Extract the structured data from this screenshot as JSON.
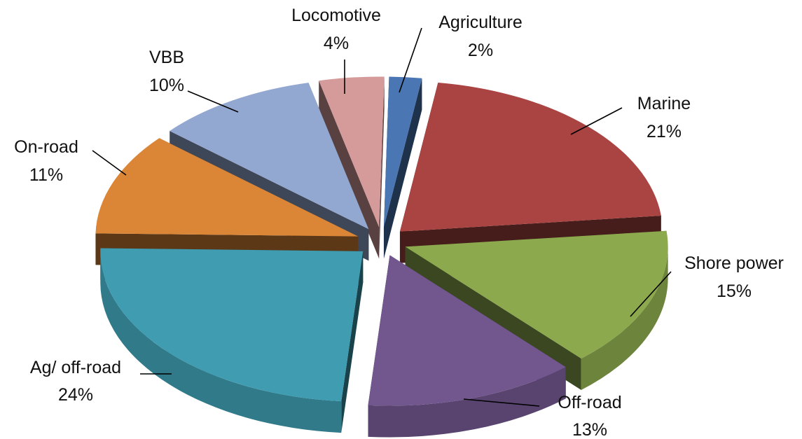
{
  "chart_data": {
    "type": "pie",
    "style": "3d-exploded",
    "title": "",
    "legend": "none",
    "unit": "%",
    "slices": [
      {
        "label": "Agriculture",
        "value": 2,
        "value_label": "2%",
        "color": "#4a77b4"
      },
      {
        "label": "Marine",
        "value": 21,
        "value_label": "21%",
        "color": "#a94442"
      },
      {
        "label": "Shore power",
        "value": 15,
        "value_label": "15%",
        "color": "#8ca94e"
      },
      {
        "label": "Off-road",
        "value": 13,
        "value_label": "13%",
        "color": "#72578f"
      },
      {
        "label": "Ag/ off-road",
        "value": 24,
        "value_label": "24%",
        "color": "#3f9cb1"
      },
      {
        "label": "On-road",
        "value": 11,
        "value_label": "11%",
        "color": "#db8637"
      },
      {
        "label": "VBB",
        "value": 10,
        "value_label": "10%",
        "color": "#93a8d1"
      },
      {
        "label": "Locomotive",
        "value": 4,
        "value_label": "4%",
        "color": "#d49b9a"
      }
    ]
  }
}
